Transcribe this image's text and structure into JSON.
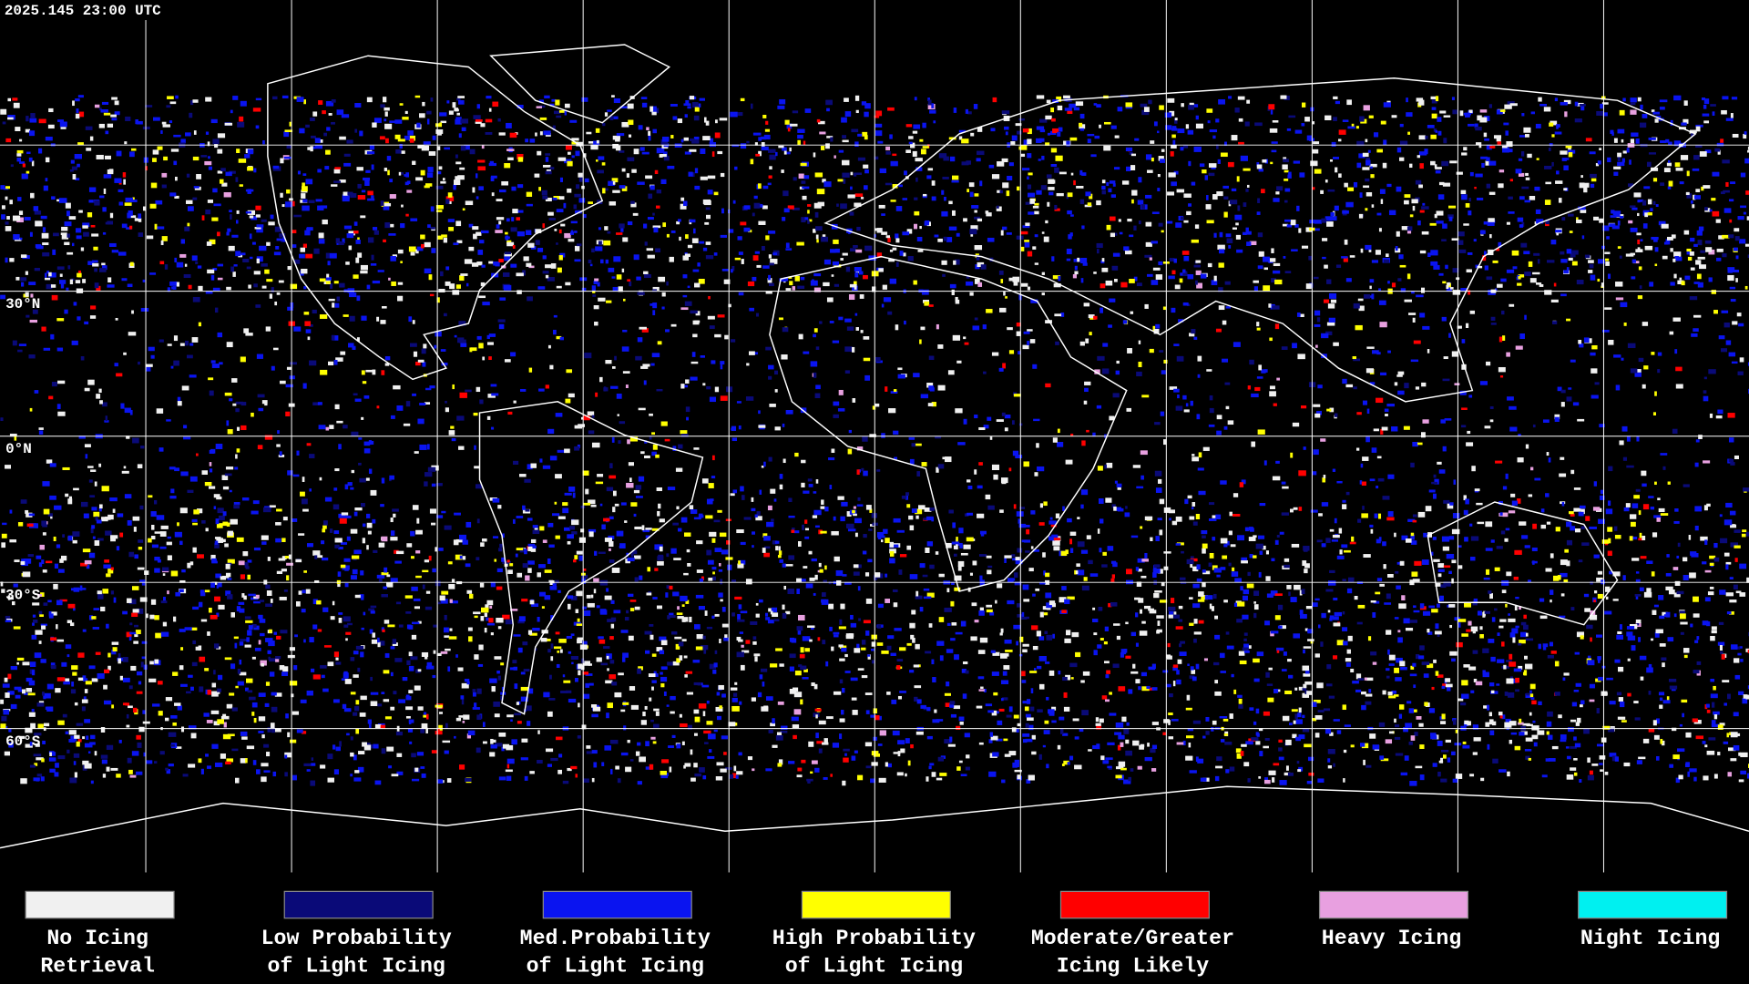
{
  "header": {
    "timestamp": "2025.145 23:00 UTC"
  },
  "map": {
    "latitude_labels": [
      "30°N",
      "0°N",
      "30°S",
      "60°S"
    ]
  },
  "legend": [
    {
      "label_lines": [
        "No Icing",
        "Retrieval"
      ],
      "color": "#f0f0f0"
    },
    {
      "label_lines": [
        "Low Probability",
        "of Light Icing"
      ],
      "color": "#0a0a78"
    },
    {
      "label_lines": [
        "Med.Probability",
        "of Light Icing"
      ],
      "color": "#0a14f0"
    },
    {
      "label_lines": [
        "High Probability",
        "of Light Icing"
      ],
      "color": "#ffff00"
    },
    {
      "label_lines": [
        "Moderate/Greater",
        "Icing Likely"
      ],
      "color": "#ff0000"
    },
    {
      "label_lines": [
        "Heavy Icing"
      ],
      "color": "#e8a0e0"
    },
    {
      "label_lines": [
        "Night Icing"
      ],
      "color": "#00f0f0"
    }
  ]
}
